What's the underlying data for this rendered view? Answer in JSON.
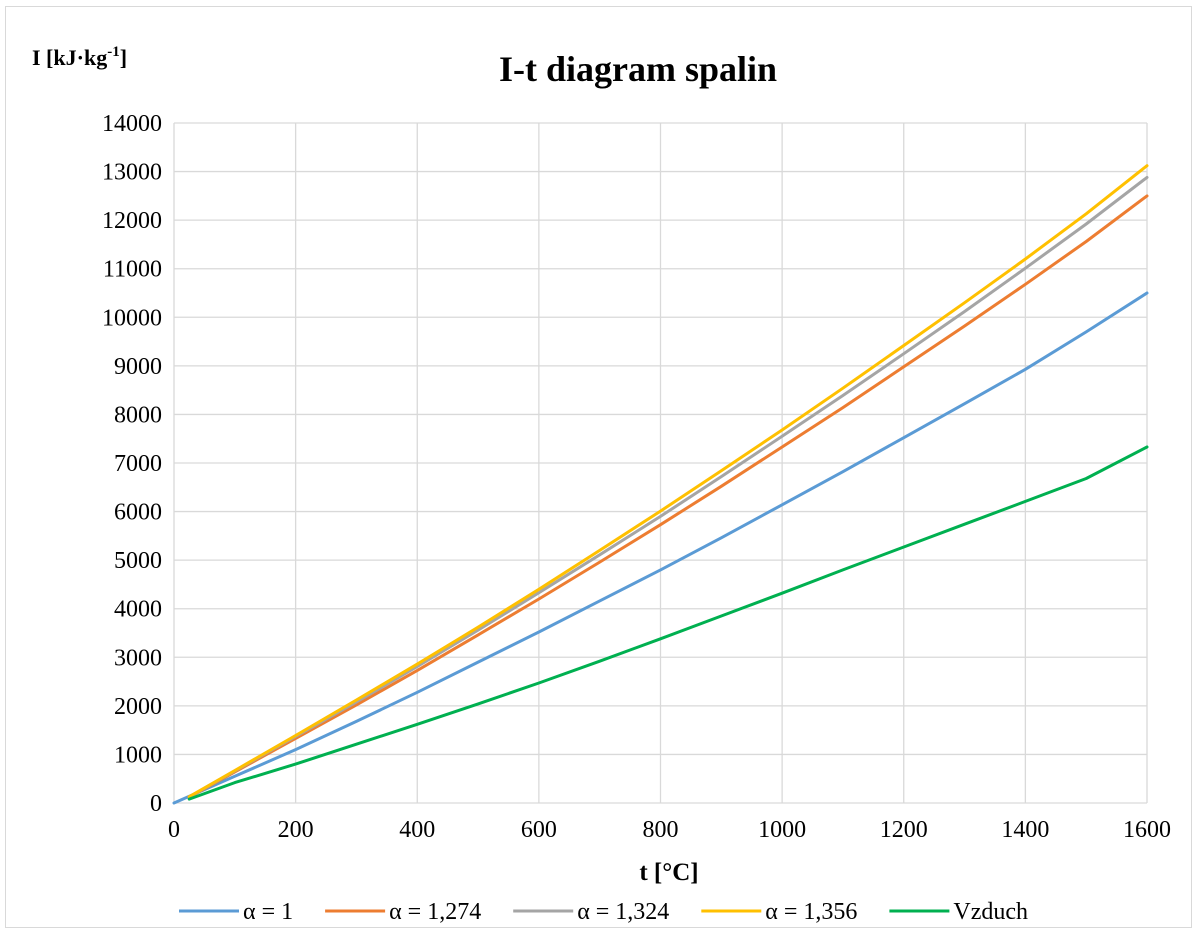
{
  "chart_data": {
    "type": "line",
    "title": "I-t diagram spalin",
    "ylabel": "I [kJ·kg",
    "ylabel_sup": "-1",
    "ylabel_suffix": "]",
    "xlabel": "t [°C]",
    "xlim": [
      0,
      1600
    ],
    "ylim": [
      0,
      14000
    ],
    "xticks": [
      0,
      200,
      400,
      600,
      800,
      1000,
      1200,
      1400,
      1600
    ],
    "yticks": [
      0,
      1000,
      2000,
      3000,
      4000,
      5000,
      6000,
      7000,
      8000,
      9000,
      10000,
      11000,
      12000,
      13000,
      14000
    ],
    "grid": true,
    "legend_position": "bottom",
    "series": [
      {
        "name": "α = 1",
        "color": "#5B9BD5",
        "x": [
          0,
          100,
          200,
          300,
          400,
          500,
          600,
          700,
          800,
          900,
          1000,
          1100,
          1200,
          1300,
          1400,
          1500,
          1600
        ],
        "y": [
          0,
          550,
          1100,
          1680,
          2280,
          2900,
          3520,
          4160,
          4800,
          5460,
          6140,
          6820,
          7520,
          8220,
          8930,
          9700,
          10500
        ]
      },
      {
        "name": "α = 1,274",
        "color": "#ED7D31",
        "x": [
          25,
          100,
          200,
          300,
          400,
          500,
          600,
          700,
          800,
          900,
          1000,
          1100,
          1200,
          1300,
          1400,
          1500,
          1600
        ],
        "y": [
          120,
          640,
          1330,
          2020,
          2730,
          3460,
          4200,
          4960,
          5730,
          6520,
          7330,
          8140,
          8980,
          9820,
          10680,
          11560,
          12500
        ]
      },
      {
        "name": "α = 1,324",
        "color": "#A5A5A5",
        "x": [
          25,
          100,
          200,
          300,
          400,
          500,
          600,
          700,
          800,
          900,
          1000,
          1100,
          1200,
          1300,
          1400,
          1500,
          1600
        ],
        "y": [
          125,
          660,
          1370,
          2080,
          2810,
          3560,
          4330,
          5110,
          5900,
          6720,
          7550,
          8390,
          9250,
          10120,
          11010,
          11920,
          12880
        ]
      },
      {
        "name": "α = 1,356",
        "color": "#FFC000",
        "x": [
          25,
          100,
          200,
          300,
          400,
          500,
          600,
          700,
          800,
          900,
          1000,
          1100,
          1200,
          1300,
          1400,
          1500,
          1600
        ],
        "y": [
          130,
          670,
          1390,
          2120,
          2860,
          3620,
          4400,
          5200,
          6010,
          6840,
          7680,
          8540,
          9420,
          10300,
          11200,
          12130,
          13120
        ]
      },
      {
        "name": "Vzduch",
        "color": "#00B050",
        "x": [
          25,
          100,
          200,
          300,
          400,
          500,
          600,
          700,
          800,
          900,
          1000,
          1100,
          1200,
          1300,
          1400,
          1500,
          1600
        ],
        "y": [
          80,
          420,
          800,
          1210,
          1620,
          2040,
          2470,
          2920,
          3380,
          3850,
          4320,
          4800,
          5270,
          5740,
          6210,
          6680,
          7330
        ]
      }
    ]
  }
}
